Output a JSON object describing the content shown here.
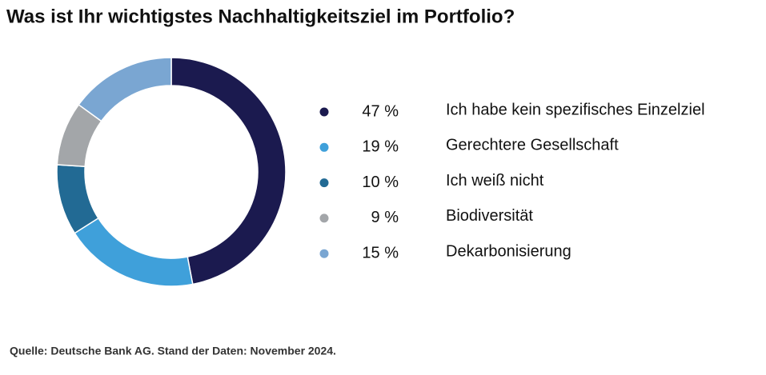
{
  "chart_data": {
    "type": "donut",
    "title": "Was ist Ihr wichtigstes Nachhaltigkeitsziel im Portfolio?",
    "categories": [
      "Ich habe kein spezifisches Einzelziel",
      "Gerechtere Gesellschaft",
      "Ich weiß nicht",
      "Biodiversität",
      "Dekarbonisierung"
    ],
    "values": [
      47,
      19,
      10,
      9,
      15
    ],
    "value_labels": [
      "47 %",
      "19 %",
      "10 %",
      "9 %",
      "15 %"
    ],
    "colors": [
      "#1b1a4f",
      "#3fa0da",
      "#226a94",
      "#a3a6a9",
      "#7aa6d2"
    ],
    "source": "Quelle: Deutsche Bank AG. Stand der Daten: November 2024."
  }
}
